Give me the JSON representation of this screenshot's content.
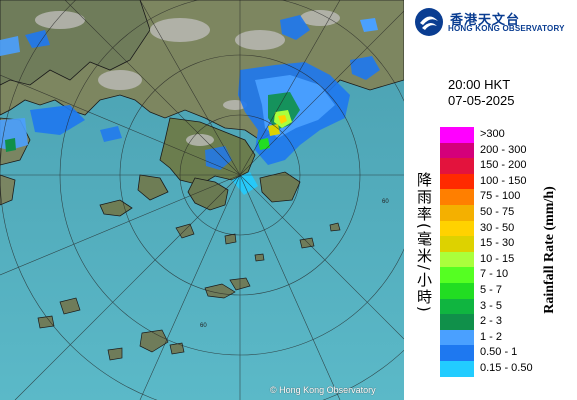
{
  "organization": {
    "name_zh": "香港天文台",
    "name_en": "HONG KONG OBSERVATORY"
  },
  "observation": {
    "time": "20:00 HKT",
    "date": "07-05-2025"
  },
  "legend": {
    "title_zh": "降雨率(毫米/小時)",
    "title_en": "Rainfall Rate (mm/h)",
    "items": [
      {
        "label": ">300",
        "color": "#ff00ff"
      },
      {
        "label": "200 - 300",
        "color": "#d4007a"
      },
      {
        "label": "150 - 200",
        "color": "#e3133d"
      },
      {
        "label": "100 - 150",
        "color": "#ff2a00"
      },
      {
        "label": "75 - 100",
        "color": "#ff7f00"
      },
      {
        "label": "50 - 75",
        "color": "#f4b000"
      },
      {
        "label": "30 - 50",
        "color": "#ffd200"
      },
      {
        "label": "15 - 30",
        "color": "#ddd200"
      },
      {
        "label": "10 - 15",
        "color": "#aaff3c"
      },
      {
        "label": "7 - 10",
        "color": "#55ff22"
      },
      {
        "label": "5 - 7",
        "color": "#22dd22"
      },
      {
        "label": "3 - 5",
        "color": "#10b540"
      },
      {
        "label": "2 - 3",
        "color": "#10904a"
      },
      {
        "label": "1 - 2",
        "color": "#4aa0ff"
      },
      {
        "label": "0.50 - 1",
        "color": "#1e78f0"
      },
      {
        "label": "0.15 - 0.50",
        "color": "#22ccff"
      }
    ]
  },
  "map": {
    "range_ring_label": "60",
    "copyright": "© Hong Kong Observatory"
  }
}
